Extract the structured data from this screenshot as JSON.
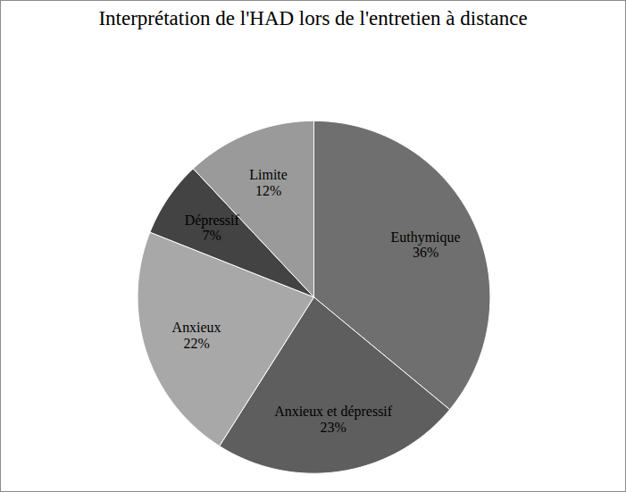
{
  "chart_data": {
    "type": "pie",
    "title": "Interprétation de l'HAD lors de l'entretien à distance",
    "categories": [
      "Euthymique",
      "Anxieux et dépressif",
      "Anxieux",
      "Dépressif",
      "Limite"
    ],
    "values": [
      36,
      23,
      22,
      7,
      12
    ],
    "value_labels": [
      "36%",
      "23%",
      "22%",
      "7%",
      "12%"
    ],
    "colors": [
      "#6f6f6f",
      "#5e5e5e",
      "#a8a8a8",
      "#434343",
      "#9a9a9a"
    ],
    "data_labels": true
  }
}
